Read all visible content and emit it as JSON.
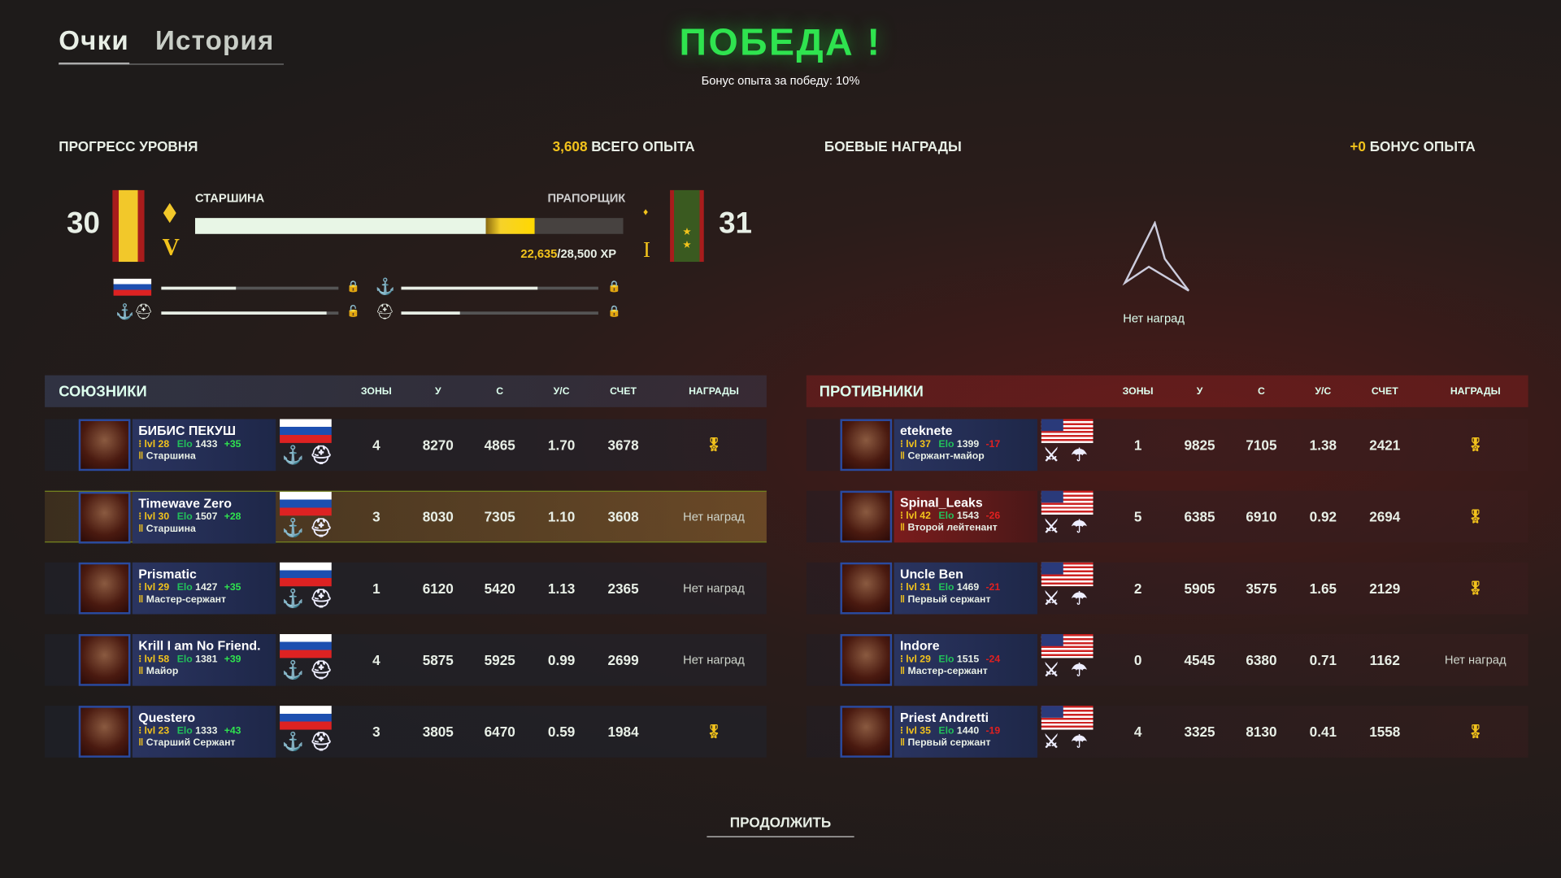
{
  "tabs": [
    {
      "label": "Очки",
      "active": true
    },
    {
      "label": "История",
      "active": false
    }
  ],
  "result": {
    "title": "ПОБЕДА !",
    "bonus": "Бонус опыта за победу: 10%"
  },
  "progress": {
    "heading": "ПРОГРЕСС УРОВНЯ",
    "total_xp_value": "3,608",
    "total_xp_label": "ВСЕГО ОПЫТА",
    "current_level": "30",
    "next_level": "31",
    "current_rank": "СТАРШИНА",
    "next_rank": "ПРАПОРЩИК",
    "current_grade": "V",
    "next_grade": "I",
    "xp_current": "22,635",
    "xp_total": "/28,500 XP",
    "fill_percent": 79.4,
    "gain_start_percent": 67.8,
    "sub_bars": [
      {
        "icon": "russia-flag",
        "fill": 0.42,
        "locked": true
      },
      {
        "icon": "anchor",
        "fill": 0.69,
        "locked": true
      },
      {
        "icon": "anchor-helmet",
        "fill": 0.93,
        "locked": true
      },
      {
        "icon": "helmet",
        "fill": 0.3,
        "locked": true
      }
    ]
  },
  "awards": {
    "heading": "БОЕВЫЕ НАГРАДЫ",
    "bonus_value": "+0",
    "bonus_label": "БОНУС ОПЫТА",
    "empty": "Нет наград"
  },
  "columns": [
    "ЗОНЫ",
    "У",
    "С",
    "У/С",
    "СЧЕТ",
    "НАГРАДЫ"
  ],
  "allies": {
    "heading": "СОЮЗНИКИ",
    "players": [
      {
        "name": "БИБИС ПЕКУШ",
        "lvl": "lvl 28",
        "elo_label": "Elo",
        "elo": "1433",
        "delta": "+35",
        "rank": "Старшина",
        "zones": "4",
        "kills": "8270",
        "deaths": "4865",
        "kd": "1.70",
        "score": "3678",
        "awards": "medal"
      },
      {
        "name": "Timewave Zero",
        "lvl": "lvl 30",
        "elo_label": "Elo",
        "elo": "1507",
        "delta": "+28",
        "rank": "Старшина",
        "zones": "3",
        "kills": "8030",
        "deaths": "7305",
        "kd": "1.10",
        "score": "3608",
        "awards": "Нет наград"
      },
      {
        "name": "Prismatic",
        "lvl": "lvl 29",
        "elo_label": "Elo",
        "elo": "1427",
        "delta": "+35",
        "rank": "Мастер-сержант",
        "zones": "1",
        "kills": "6120",
        "deaths": "5420",
        "kd": "1.13",
        "score": "2365",
        "awards": "Нет наград"
      },
      {
        "name": "Krill I am No Friend.",
        "lvl": "lvl 58",
        "elo_label": "Elo",
        "elo": "1381",
        "delta": "+39",
        "rank": "Майор",
        "zones": "4",
        "kills": "5875",
        "deaths": "5925",
        "kd": "0.99",
        "score": "2699",
        "awards": "Нет наград"
      },
      {
        "name": "Questero",
        "lvl": "lvl 23",
        "elo_label": "Elo",
        "elo": "1333",
        "delta": "+43",
        "rank": "Старший Сержант",
        "zones": "3",
        "kills": "3805",
        "deaths": "6470",
        "kd": "0.59",
        "score": "1984",
        "awards": "medal"
      }
    ]
  },
  "enemies": {
    "heading": "ПРОТИВНИКИ",
    "players": [
      {
        "name": "eteknete",
        "lvl": "lvl 37",
        "elo_label": "Elo",
        "elo": "1399",
        "delta": "-17",
        "rank": "Сержант-майор",
        "zones": "1",
        "kills": "9825",
        "deaths": "7105",
        "kd": "1.38",
        "score": "2421",
        "awards": "medal"
      },
      {
        "name": "Spinal_Leaks",
        "lvl": "lvl 42",
        "elo_label": "Elo",
        "elo": "1543",
        "delta": "-26",
        "rank": "Второй лейтенант",
        "zones": "5",
        "kills": "6385",
        "deaths": "6910",
        "kd": "0.92",
        "score": "2694",
        "awards": "medal"
      },
      {
        "name": "Uncle Ben",
        "lvl": "lvl 31",
        "elo_label": "Elo",
        "elo": "1469",
        "delta": "-21",
        "rank": "Первый сержант",
        "zones": "2",
        "kills": "5905",
        "deaths": "3575",
        "kd": "1.65",
        "score": "2129",
        "awards": "medal"
      },
      {
        "name": "Indore",
        "lvl": "lvl 29",
        "elo_label": "Elo",
        "elo": "1515",
        "delta": "-24",
        "rank": "Мастер-сержант",
        "zones": "0",
        "kills": "4545",
        "deaths": "6380",
        "kd": "0.71",
        "score": "1162",
        "awards": "Нет наград"
      },
      {
        "name": "Priest Andretti",
        "lvl": "lvl 35",
        "elo_label": "Elo",
        "elo": "1440",
        "delta": "-19",
        "rank": "Первый сержант",
        "zones": "4",
        "kills": "3325",
        "deaths": "8130",
        "kd": "0.41",
        "score": "1558",
        "awards": "medal"
      }
    ]
  },
  "continue_label": "ПРОДОЛЖИТЬ",
  "colors": {
    "victory": "#2fe34f",
    "xp": "#f2c31c",
    "elo": "#22c05a",
    "gain": "#2fe34f",
    "loss": "#e02020"
  }
}
